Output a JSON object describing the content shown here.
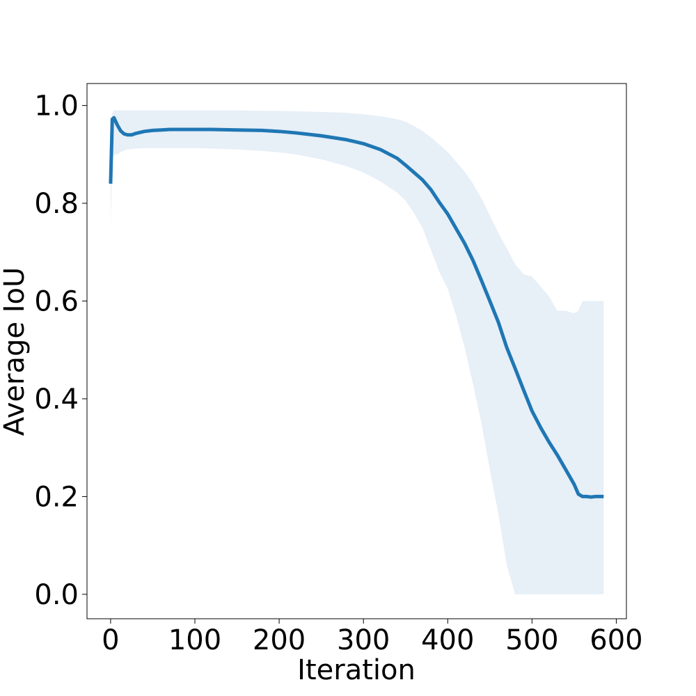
{
  "chart_data": {
    "type": "line",
    "title": "",
    "xlabel": "Iteration",
    "ylabel": "Average IoU",
    "xlim": [
      -28,
      612
    ],
    "ylim": [
      -0.05,
      1.045
    ],
    "xticks": [
      0,
      100,
      200,
      300,
      400,
      500,
      600
    ],
    "xtick_labels": [
      "0",
      "100",
      "200",
      "300",
      "400",
      "500",
      "600"
    ],
    "yticks": [
      0.0,
      0.2,
      0.4,
      0.6,
      0.8,
      1.0
    ],
    "ytick_labels": [
      "0.0",
      "0.2",
      "0.4",
      "0.6",
      "0.8",
      "1.0"
    ],
    "grid": false,
    "legend": "none",
    "colors": {
      "line": "#1f77b4",
      "band": "#e7eff7",
      "axes": "#000000"
    },
    "series": [
      {
        "x": [
          0,
          2,
          4,
          8,
          12,
          16,
          20,
          25,
          30,
          40,
          50,
          60,
          70,
          80,
          100,
          120,
          150,
          180,
          200,
          220,
          250,
          280,
          300,
          320,
          340,
          350,
          360,
          370,
          380,
          390,
          400,
          410,
          420,
          430,
          440,
          450,
          460,
          470,
          480,
          490,
          500,
          510,
          520,
          530,
          540,
          550,
          555,
          560,
          565,
          570,
          575,
          580,
          585
        ],
        "y": [
          0.84,
          0.972,
          0.975,
          0.96,
          0.948,
          0.942,
          0.94,
          0.94,
          0.943,
          0.947,
          0.949,
          0.95,
          0.951,
          0.951,
          0.951,
          0.951,
          0.95,
          0.949,
          0.947,
          0.944,
          0.938,
          0.93,
          0.922,
          0.91,
          0.892,
          0.878,
          0.863,
          0.848,
          0.828,
          0.802,
          0.778,
          0.748,
          0.718,
          0.683,
          0.642,
          0.6,
          0.557,
          0.505,
          0.462,
          0.418,
          0.375,
          0.342,
          0.312,
          0.285,
          0.255,
          0.225,
          0.205,
          0.2,
          0.2,
          0.199,
          0.2,
          0.2,
          0.2
        ],
        "lower": [
          0.75,
          0.89,
          0.9,
          0.9,
          0.905,
          0.908,
          0.91,
          0.911,
          0.912,
          0.913,
          0.913,
          0.913,
          0.913,
          0.913,
          0.913,
          0.912,
          0.91,
          0.907,
          0.904,
          0.9,
          0.89,
          0.876,
          0.863,
          0.845,
          0.822,
          0.805,
          0.78,
          0.75,
          0.705,
          0.66,
          0.625,
          0.57,
          0.505,
          0.43,
          0.35,
          0.255,
          0.165,
          0.06,
          0.0,
          0.0,
          0.0,
          0.0,
          0.0,
          0.0,
          0.0,
          0.0,
          0.0,
          0.0,
          0.0,
          0.0,
          0.0,
          0.0,
          0.0
        ],
        "upper": [
          0.93,
          0.985,
          0.99,
          0.99,
          0.99,
          0.99,
          0.99,
          0.99,
          0.99,
          0.99,
          0.99,
          0.99,
          0.99,
          0.99,
          0.99,
          0.99,
          0.99,
          0.989,
          0.989,
          0.988,
          0.987,
          0.985,
          0.982,
          0.978,
          0.972,
          0.967,
          0.958,
          0.948,
          0.935,
          0.92,
          0.905,
          0.885,
          0.865,
          0.84,
          0.81,
          0.775,
          0.74,
          0.708,
          0.675,
          0.655,
          0.65,
          0.63,
          0.61,
          0.58,
          0.58,
          0.575,
          0.58,
          0.6,
          0.6,
          0.6,
          0.6,
          0.6,
          0.6
        ]
      }
    ]
  }
}
